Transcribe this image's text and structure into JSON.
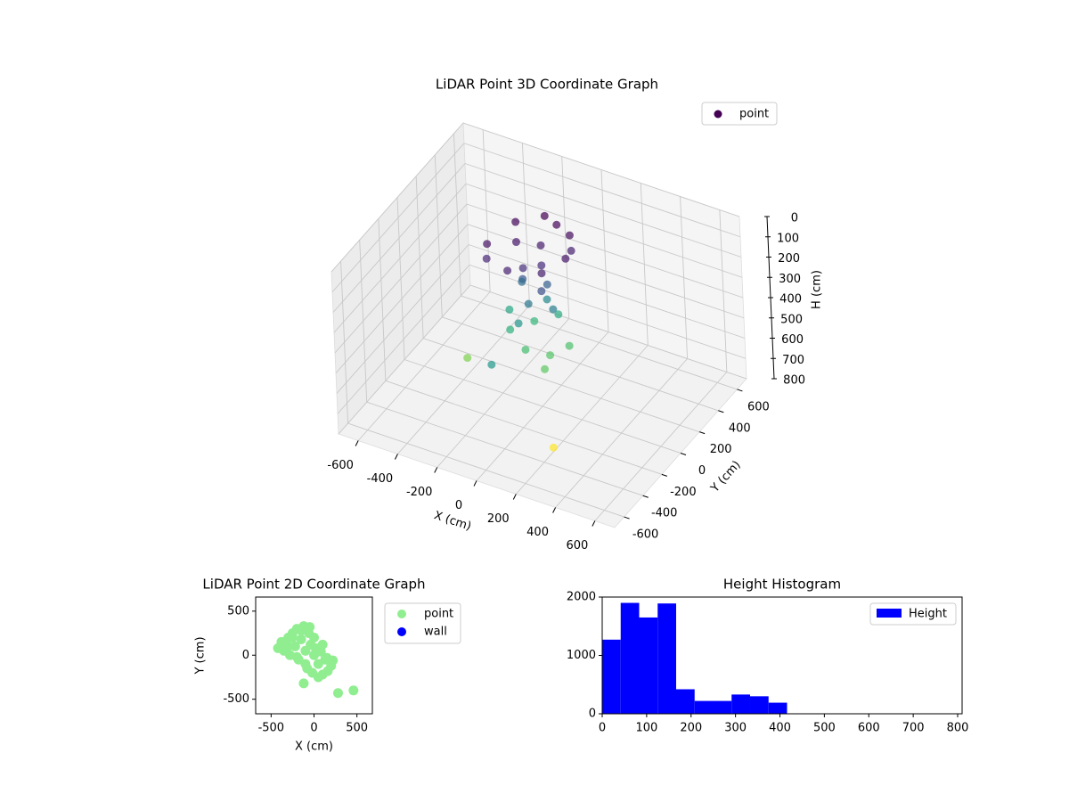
{
  "chart_data": [
    {
      "type": "scatter3d",
      "title": "LiDAR Point 3D Coordinate Graph",
      "xlabel": "X (cm)",
      "ylabel": "Y (cm)",
      "zlabel": "H (cm)",
      "xlim": [
        -700,
        700
      ],
      "ylim": [
        -700,
        700
      ],
      "zlim": [
        0,
        800
      ],
      "zinvert": true,
      "xticks": [
        -600,
        -400,
        -200,
        0,
        200,
        400,
        600
      ],
      "yticks": [
        -600,
        -400,
        -200,
        0,
        200,
        400,
        600
      ],
      "zticks": [
        0,
        100,
        200,
        300,
        400,
        500,
        600,
        700,
        800
      ],
      "grid": true,
      "legend": "upper right",
      "colormap": "viridis",
      "series": [
        {
          "name": "point",
          "color": "#440154",
          "x": [
            -300,
            -250,
            -150,
            0,
            50,
            0,
            -150,
            -280,
            -200,
            -100,
            -50,
            -120,
            30,
            -80,
            -150,
            -50,
            -100,
            0,
            -180,
            -80,
            -20,
            -130,
            -200,
            -100,
            0,
            50,
            -150,
            -50,
            -250,
            20,
            -350,
            -100,
            200
          ],
          "y": [
            100,
            300,
            400,
            350,
            200,
            50,
            0,
            50,
            200,
            250,
            150,
            100,
            300,
            380,
            150,
            200,
            100,
            150,
            200,
            250,
            80,
            50,
            100,
            50,
            100,
            200,
            250,
            300,
            200,
            0,
            -50,
            -300,
            -300
          ],
          "z": [
            150,
            130,
            120,
            140,
            160,
            170,
            180,
            190,
            160,
            170,
            200,
            210,
            180,
            130,
            300,
            320,
            380,
            400,
            350,
            430,
            280,
            460,
            540,
            580,
            600,
            590,
            560,
            520,
            510,
            610,
            650,
            470,
            780
          ]
        }
      ]
    },
    {
      "type": "scatter",
      "title": "LiDAR Point 2D Coordinate Graph",
      "xlabel": "X (cm)",
      "ylabel": "Y (cm)",
      "xlim": [
        -680,
        680
      ],
      "ylim": [
        -665,
        660
      ],
      "xticks": [
        -500,
        0,
        500
      ],
      "yticks": [
        -500,
        0,
        500
      ],
      "legend": "outside right",
      "series": [
        {
          "name": "point",
          "color": "#90ee90",
          "x": [
            -420,
            -380,
            -350,
            -300,
            -280,
            -250,
            -220,
            -200,
            -180,
            -150,
            -120,
            -100,
            -80,
            -60,
            -40,
            -20,
            0,
            20,
            50,
            80,
            100,
            130,
            160,
            200,
            220,
            -300,
            -200,
            -100,
            0,
            100,
            -150,
            -50,
            50,
            -250,
            150,
            -120,
            280,
            460
          ],
          "y": [
            80,
            150,
            50,
            200,
            0,
            250,
            100,
            300,
            -50,
            180,
            330,
            50,
            -150,
            250,
            120,
            -200,
            0,
            80,
            -100,
            40,
            -220,
            -50,
            -180,
            -120,
            -60,
            100,
            -20,
            -100,
            200,
            120,
            280,
            320,
            -250,
            200,
            -30,
            -320,
            -430,
            -400
          ]
        },
        {
          "name": "wall",
          "color": "#0000ff",
          "x": [],
          "y": []
        }
      ]
    },
    {
      "type": "histogram",
      "title": "Height Histogram",
      "name": "Height",
      "color": "#0000ff",
      "legend": "upper right",
      "bins": [
        0,
        41.6,
        83.2,
        124.8,
        166.4,
        208,
        249.6,
        291.2,
        332.8,
        374.4,
        416
      ],
      "values": [
        1270,
        1900,
        1650,
        1890,
        420,
        220,
        220,
        330,
        300,
        190
      ],
      "xlim": [
        0,
        810
      ],
      "ylim": [
        0,
        2000
      ],
      "xticks": [
        0,
        100,
        200,
        300,
        400,
        500,
        600,
        700,
        800
      ],
      "yticks": [
        0,
        1000,
        2000
      ]
    }
  ]
}
